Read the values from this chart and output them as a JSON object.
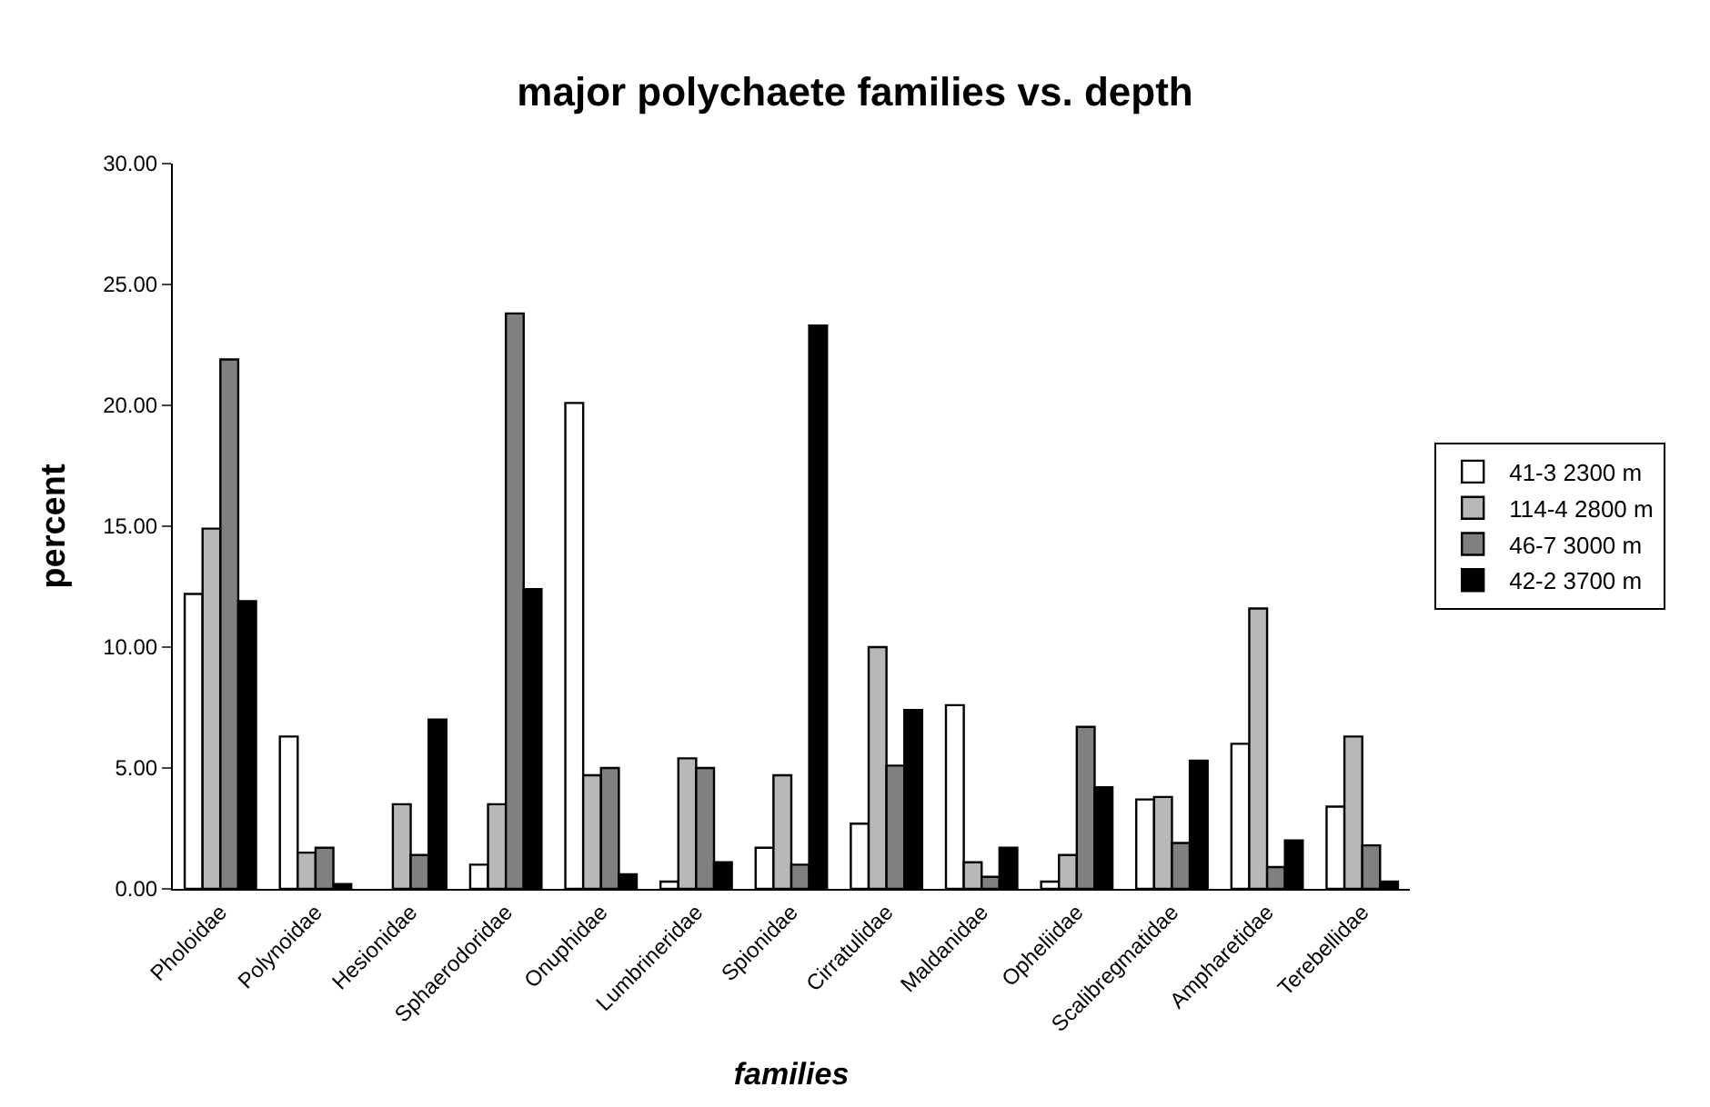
{
  "chart_data": {
    "type": "bar",
    "title": "major polychaete families vs. depth",
    "xlabel": "families",
    "ylabel": "percent",
    "categories": [
      "Pholoidae",
      "Polynoidae",
      "Hesionidae",
      "Sphaerodoridae",
      "Onuphidae",
      "Lumbrineridae",
      "Spionidae",
      "Cirratulidae",
      "Maldanidae",
      "Opheliidae",
      "Scalibregmatidae",
      "Ampharetidae",
      "Terebellidae"
    ],
    "series": [
      {
        "name": "41-3 2300 m",
        "color": "#ffffff",
        "values": [
          12.2,
          6.3,
          null,
          1.0,
          20.1,
          0.3,
          1.7,
          2.7,
          7.6,
          0.3,
          3.7,
          6.0,
          3.4
        ]
      },
      {
        "name": "114-4 2800 m",
        "color": "#b8b8b8",
        "values": [
          14.9,
          1.5,
          3.5,
          3.5,
          4.7,
          5.4,
          4.7,
          10.0,
          1.1,
          1.4,
          3.8,
          11.6,
          6.3
        ]
      },
      {
        "name": "46-7 3000 m",
        "color": "#808080",
        "values": [
          21.9,
          1.7,
          1.4,
          23.8,
          5.0,
          5.0,
          1.0,
          5.1,
          0.5,
          6.7,
          1.9,
          0.9,
          1.8
        ]
      },
      {
        "name": "42-2 3700 m",
        "color": "#000000",
        "values": [
          11.9,
          0.2,
          7.0,
          12.4,
          0.6,
          1.1,
          23.3,
          7.4,
          1.7,
          4.2,
          5.3,
          2.0,
          0.3
        ]
      }
    ],
    "ylim": [
      0,
      30
    ],
    "yticks": [
      {
        "value": 0,
        "label": "0.00"
      },
      {
        "value": 5,
        "label": "5.00"
      },
      {
        "value": 10,
        "label": "10.00"
      },
      {
        "value": 15,
        "label": "15.00"
      },
      {
        "value": 20,
        "label": "20.00"
      },
      {
        "value": 25,
        "label": "25.00"
      },
      {
        "value": 30,
        "label": "30.00"
      }
    ],
    "legend": "right"
  }
}
